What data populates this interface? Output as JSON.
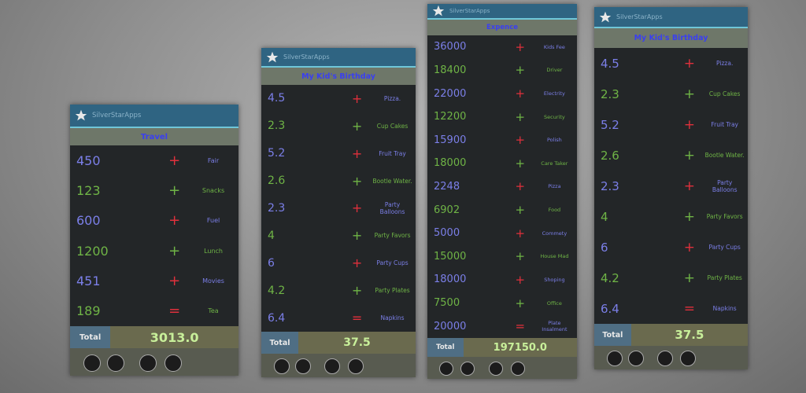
{
  "screens": [
    {
      "app_name": "SilverStarApps",
      "title": "Travel",
      "total_label": "Total",
      "total": "3013.0",
      "rows": [
        {
          "value": "450",
          "op": "+",
          "label": "Fair"
        },
        {
          "value": "123",
          "op": "+",
          "label": "Snacks"
        },
        {
          "value": "600",
          "op": "+",
          "label": "Fuel"
        },
        {
          "value": "1200",
          "op": "+",
          "label": "Lunch"
        },
        {
          "value": "451",
          "op": "+",
          "label": "Movies"
        },
        {
          "value": "189",
          "op": "=",
          "label": "Tea"
        }
      ]
    },
    {
      "app_name": "SilverStarApps",
      "title": "My Kid's Birthday",
      "total_label": "Total",
      "total": "37.5",
      "rows": [
        {
          "value": "4.5",
          "op": "+",
          "label": "Pizza."
        },
        {
          "value": "2.3",
          "op": "+",
          "label": "Cup Cakes"
        },
        {
          "value": "5.2",
          "op": "+",
          "label": "Fruit Tray"
        },
        {
          "value": "2.6",
          "op": "+",
          "label": "Bootle Water."
        },
        {
          "value": "2.3",
          "op": "+",
          "label": "Party Balloons"
        },
        {
          "value": "4",
          "op": "+",
          "label": "Party Favors"
        },
        {
          "value": "6",
          "op": "+",
          "label": "Party Cups"
        },
        {
          "value": "4.2",
          "op": "+",
          "label": "Party Plates"
        },
        {
          "value": "6.4",
          "op": "=",
          "label": "Napkins"
        }
      ]
    },
    {
      "app_name": "SilverStarApps",
      "title": "Expence",
      "total_label": "Total",
      "total": "197150.0",
      "rows": [
        {
          "value": "36000",
          "op": "+",
          "label": "Kids Fee"
        },
        {
          "value": "18400",
          "op": "+",
          "label": "Driver"
        },
        {
          "value": "22000",
          "op": "+",
          "label": "Electrity"
        },
        {
          "value": "12200",
          "op": "+",
          "label": "Security"
        },
        {
          "value": "15900",
          "op": "+",
          "label": "Polish"
        },
        {
          "value": "18000",
          "op": "+",
          "label": "Care Taker"
        },
        {
          "value": "2248",
          "op": "+",
          "label": "Pizza"
        },
        {
          "value": "6902",
          "op": "+",
          "label": "Food"
        },
        {
          "value": "5000",
          "op": "+",
          "label": "Commety"
        },
        {
          "value": "15000",
          "op": "+",
          "label": "House Mad"
        },
        {
          "value": "18000",
          "op": "+",
          "label": "Shoping"
        },
        {
          "value": "7500",
          "op": "+",
          "label": "Office"
        },
        {
          "value": "20000",
          "op": "=",
          "label": "Plate Insalment"
        }
      ]
    },
    {
      "app_name": "SilverStarApps",
      "title": "My Kid's Birthday",
      "total_label": "Total",
      "total": "37.5",
      "rows": [
        {
          "value": "4.5",
          "op": "+",
          "label": "Pizza."
        },
        {
          "value": "2.3",
          "op": "+",
          "label": "Cup Cakes"
        },
        {
          "value": "5.2",
          "op": "+",
          "label": "Fruit Tray"
        },
        {
          "value": "2.6",
          "op": "+",
          "label": "Bootle Water."
        },
        {
          "value": "2.3",
          "op": "+",
          "label": "Party Balloons"
        },
        {
          "value": "4",
          "op": "+",
          "label": "Party Favors"
        },
        {
          "value": "6",
          "op": "+",
          "label": "Party Cups"
        },
        {
          "value": "4.2",
          "op": "+",
          "label": "Party Plates"
        },
        {
          "value": "6.4",
          "op": "=",
          "label": "Napkins"
        }
      ]
    }
  ]
}
